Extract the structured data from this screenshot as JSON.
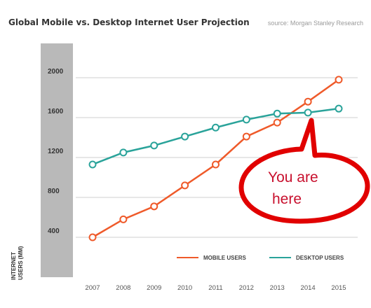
{
  "chart_data": {
    "type": "line",
    "title": "Global Mobile vs. Desktop Internet User Projection",
    "source": "source: Morgan Stanley Research",
    "ylabel_line1": "INTERNET",
    "ylabel_line2": "USERS (MM)",
    "x": [
      "2007",
      "2008",
      "2009",
      "2010",
      "2011",
      "2012",
      "2013",
      "2014",
      "2015"
    ],
    "yticks": [
      400,
      800,
      1200,
      1600,
      2000
    ],
    "ylim": [
      0,
      2300
    ],
    "series": [
      {
        "name": "MOBILE USERS",
        "color": "#ef5a2a",
        "values": [
          400,
          580,
          710,
          920,
          1130,
          1410,
          1550,
          1760,
          1980
        ]
      },
      {
        "name": "DESKTOP USERS",
        "color": "#2aa39a",
        "values": [
          1130,
          1250,
          1320,
          1410,
          1500,
          1580,
          1640,
          1650,
          1690
        ]
      }
    ],
    "grid": true,
    "legend": "bottom-right",
    "annotation": "You are here",
    "annotation_line1": "You are",
    "annotation_line2": "here"
  }
}
